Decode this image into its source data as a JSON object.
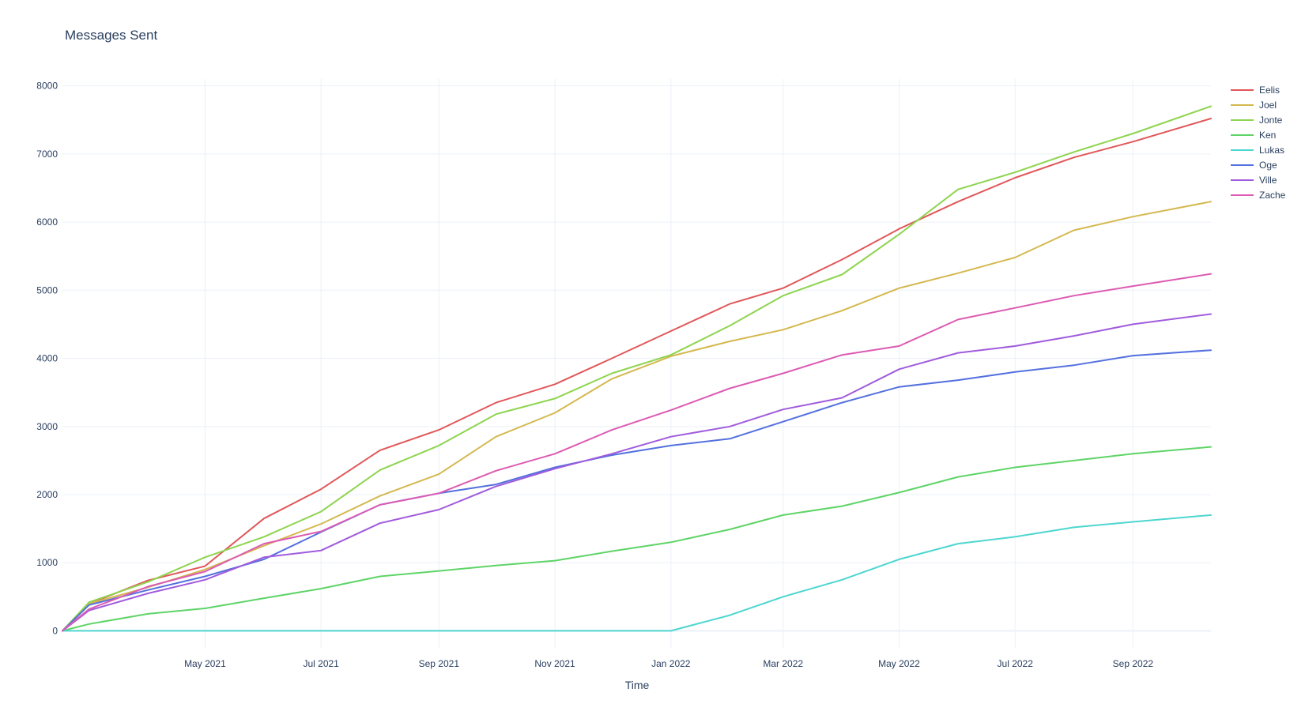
{
  "chart_data": {
    "type": "line",
    "title": "Messages Sent",
    "xlabel": "Time",
    "ylabel": "",
    "x_tick_labels": [
      "May 2021",
      "Jul 2021",
      "Sep 2021",
      "Nov 2021",
      "Jan 2022",
      "Mar 2022",
      "May 2022",
      "Jul 2022",
      "Sep 2022"
    ],
    "x_tick_dates": [
      "2021-05-01",
      "2021-07-01",
      "2021-09-01",
      "2021-11-01",
      "2022-01-01",
      "2022-03-01",
      "2022-05-01",
      "2022-07-01",
      "2022-09-01"
    ],
    "xlim": [
      "2021-02-15",
      "2022-10-12"
    ],
    "ylim": [
      -250,
      8100
    ],
    "y_ticks": [
      0,
      1000,
      2000,
      3000,
      4000,
      5000,
      6000,
      7000,
      8000
    ],
    "grid": true,
    "legend_position": "top-right",
    "x": [
      "2021-02-15",
      "2021-03-01",
      "2021-04-01",
      "2021-05-01",
      "2021-06-01",
      "2021-07-01",
      "2021-08-01",
      "2021-09-01",
      "2021-10-01",
      "2021-11-01",
      "2021-12-01",
      "2022-01-01",
      "2022-02-01",
      "2022-03-01",
      "2022-04-01",
      "2022-05-01",
      "2022-06-01",
      "2022-07-01",
      "2022-08-01",
      "2022-09-01",
      "2022-10-12"
    ],
    "series": [
      {
        "name": "Eelis",
        "color": "#e15759",
        "values": [
          0,
          400,
          740,
          950,
          1650,
          2080,
          2650,
          2950,
          3350,
          3620,
          4000,
          4400,
          4800,
          5030,
          5450,
          5900,
          6300,
          6650,
          6950,
          7180,
          7520
        ]
      },
      {
        "name": "Joel",
        "color": "#d4b84f",
        "values": [
          0,
          400,
          640,
          900,
          1250,
          1570,
          1980,
          2300,
          2850,
          3200,
          3700,
          4030,
          4250,
          4420,
          4700,
          5030,
          5250,
          5480,
          5880,
          6080,
          6300
        ]
      },
      {
        "name": "Jonte",
        "color": "#8ed44f",
        "values": [
          0,
          420,
          720,
          1080,
          1380,
          1750,
          2360,
          2720,
          3180,
          3410,
          3780,
          4050,
          4480,
          4920,
          5230,
          5820,
          6480,
          6730,
          7030,
          7300,
          7700
        ]
      },
      {
        "name": "Ken",
        "color": "#5ed467",
        "values": [
          0,
          100,
          250,
          330,
          480,
          620,
          800,
          880,
          960,
          1030,
          1170,
          1300,
          1490,
          1700,
          1830,
          2030,
          2260,
          2400,
          2500,
          2600,
          2700
        ]
      },
      {
        "name": "Lukas",
        "color": "#4dd6d0",
        "values": [
          0,
          0,
          0,
          0,
          0,
          0,
          0,
          0,
          0,
          0,
          0,
          0,
          230,
          500,
          750,
          1050,
          1280,
          1380,
          1520,
          1600,
          1700
        ]
      },
      {
        "name": "Oge",
        "color": "#5470de",
        "values": [
          0,
          380,
          600,
          800,
          1050,
          1450,
          1850,
          2020,
          2150,
          2400,
          2580,
          2720,
          2820,
          3070,
          3350,
          3580,
          3680,
          3800,
          3900,
          4040,
          4120
        ]
      },
      {
        "name": "Ville",
        "color": "#a05bdc",
        "values": [
          0,
          300,
          550,
          750,
          1080,
          1180,
          1580,
          1780,
          2120,
          2380,
          2600,
          2850,
          3000,
          3250,
          3420,
          3840,
          4080,
          4180,
          4330,
          4500,
          4650
        ]
      },
      {
        "name": "Zache",
        "color": "#dc5bb3",
        "values": [
          0,
          320,
          650,
          870,
          1280,
          1460,
          1850,
          2020,
          2350,
          2600,
          2950,
          3240,
          3560,
          3780,
          4050,
          4180,
          4570,
          4740,
          4920,
          5060,
          5240
        ]
      }
    ]
  }
}
